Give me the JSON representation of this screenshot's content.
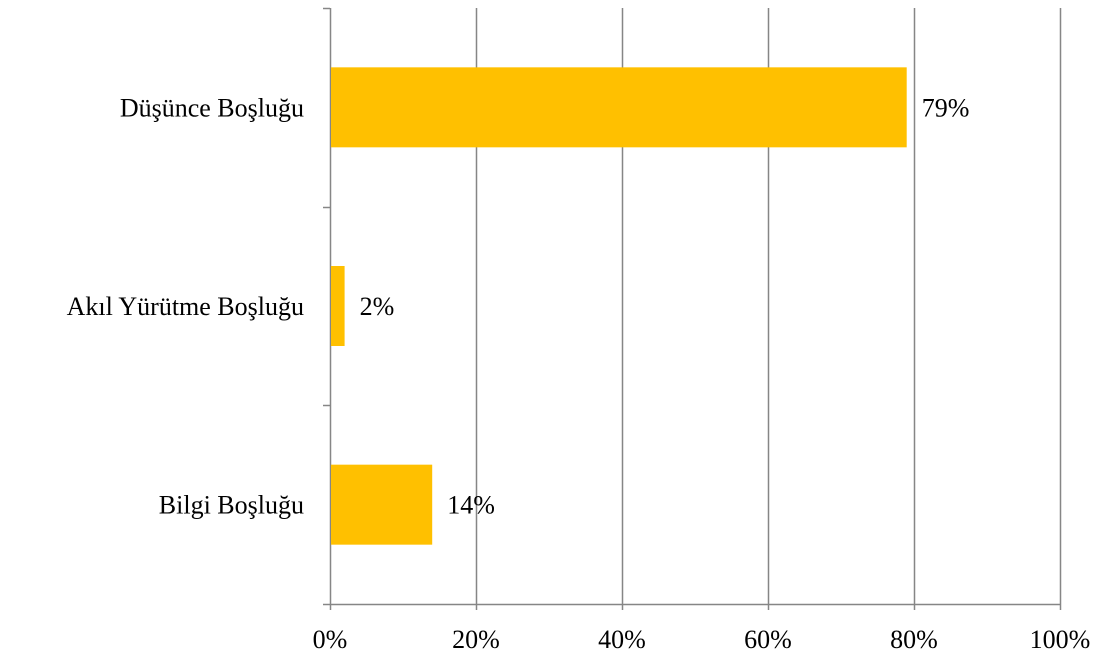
{
  "chart_data": {
    "type": "bar",
    "orientation": "horizontal",
    "categories": [
      "Düşünce Boşluğu",
      "Akıl Yürütme Boşluğu",
      "Bilgi Boşluğu"
    ],
    "values": [
      79,
      2,
      14
    ],
    "data_labels": [
      "79%",
      "2%",
      "14%"
    ],
    "xlim": [
      0,
      100
    ],
    "x_ticks": [
      0,
      20,
      40,
      60,
      80,
      100
    ],
    "x_tick_labels": [
      "0%",
      "20%",
      "40%",
      "60%",
      "80%",
      "100%"
    ],
    "grid": true,
    "legend": "none",
    "colors": {
      "bar": "#FFC000",
      "grid": "#868686",
      "text": "#000000"
    }
  }
}
